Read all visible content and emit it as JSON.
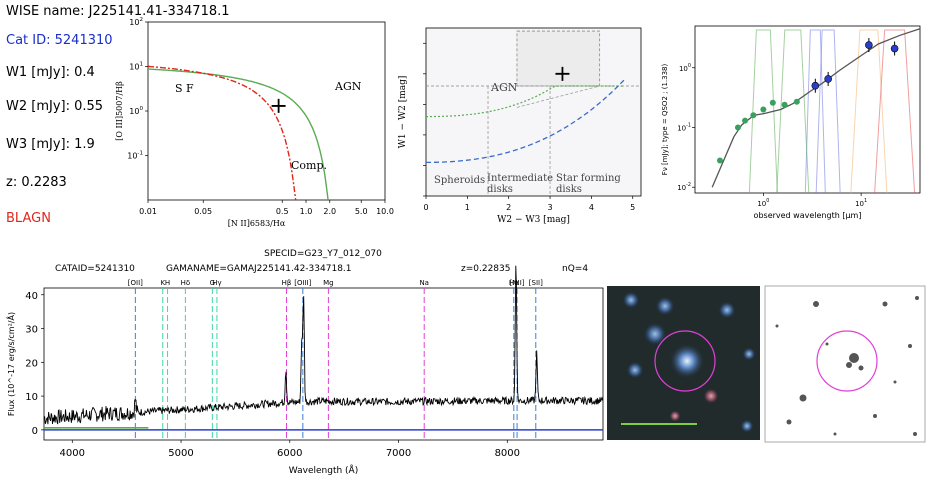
{
  "info": {
    "wise_name": "WISE name: J225141.41-334718.1",
    "cat_id": "Cat ID: 5241310",
    "w1": "W1 [mJy]:  0.4",
    "w2": "W2 [mJy]:  0.55",
    "w3": "W3 [mJy]:  1.9",
    "z": "z:   0.2283",
    "class": "BLAGN"
  },
  "colors": {
    "blue": "#1a2ecc",
    "red": "#e0261b",
    "green": "#5aac52",
    "magenta": "#e040d8"
  },
  "chart_data": [
    {
      "type": "scatter",
      "name": "BPT diagram",
      "xlabel": "[N II]6583/Hα",
      "ylabel": "[O III]5007/Hβ",
      "xscale": "log",
      "yscale": "log",
      "xlim": [
        0.01,
        10.0
      ],
      "ylim": [
        0.01,
        100
      ],
      "xticks": [
        "0.01",
        "0.05",
        "0.5",
        "1.0",
        "2.0",
        "5.0",
        "10.0"
      ],
      "xtick_values": [
        0.01,
        0.05,
        0.5,
        1.0,
        2.0,
        5.0,
        10.0
      ],
      "yticks": [
        "10^-1",
        "10^0",
        "10^1",
        "10^2"
      ],
      "ytick_values": [
        0.1,
        1,
        10,
        100
      ],
      "region_labels": [
        "S F",
        "AGN",
        "Comp."
      ],
      "point": {
        "x": 0.45,
        "y": 1.3
      }
    },
    {
      "type": "scatter",
      "name": "WISE colour-colour",
      "xlabel": "W2 − W3 [mag]",
      "ylabel": "W1 − W2 [mag]",
      "xlim": [
        0,
        5.2
      ],
      "ylim": [
        -1.0,
        1.75
      ],
      "xticks": [
        "0",
        "1",
        "2",
        "3",
        "4",
        "5"
      ],
      "yticks": [
        "−1.0",
        "−0.5",
        "0.0",
        "0.5",
        "1.0",
        "1.5"
      ],
      "region_labels": [
        "AGN",
        "Spheroids",
        "Intermediate",
        "disks",
        "Star forming",
        "disks"
      ],
      "point": {
        "x": 3.3,
        "y": 1.0
      }
    },
    {
      "type": "scatter",
      "name": "SED",
      "xlabel": "observed wavelength [μm]",
      "ylabel": "Fν [mJy]; type = QSO2 ; (1.338)",
      "xscale": "log",
      "yscale": "log",
      "xlim": [
        0.2,
        40
      ],
      "ylim": [
        0.008,
        5
      ],
      "xticks": [
        "10^0",
        "10^1"
      ],
      "yticks": [
        "10^-2",
        "10^-1",
        "10^0"
      ],
      "green_points": [
        [
          0.36,
          0.028
        ],
        [
          0.55,
          0.1
        ],
        [
          0.65,
          0.13
        ],
        [
          0.79,
          0.16
        ],
        [
          1.0,
          0.2
        ],
        [
          1.25,
          0.26
        ],
        [
          1.65,
          0.24
        ],
        [
          2.2,
          0.27
        ]
      ],
      "blue_points": [
        [
          3.4,
          0.5
        ],
        [
          4.6,
          0.65
        ],
        [
          12,
          2.4
        ],
        [
          22,
          2.1
        ]
      ],
      "model": [
        [
          0.3,
          0.01
        ],
        [
          0.4,
          0.03
        ],
        [
          0.5,
          0.07
        ],
        [
          0.6,
          0.11
        ],
        [
          0.8,
          0.16
        ],
        [
          1.0,
          0.17
        ],
        [
          1.5,
          0.2
        ],
        [
          2.0,
          0.25
        ],
        [
          3.0,
          0.4
        ],
        [
          4.0,
          0.55
        ],
        [
          6.0,
          0.9
        ],
        [
          10,
          1.6
        ],
        [
          15,
          2.5
        ],
        [
          25,
          3.5
        ],
        [
          40,
          4.5
        ]
      ]
    },
    {
      "type": "line",
      "name": "Spectrum",
      "header": {
        "specid": "SPECID=G23_Y7_012_070",
        "cataid": "CATAID=5241310",
        "gamaname": "GAMANAME=GAMAJ225141.42-334718.1",
        "z": "z=0.22835",
        "nq": "nQ=4"
      },
      "xlabel": "Wavelength (Å)",
      "ylabel": "Flux (10^-17 erg/s/cm²/Å)",
      "xlim": [
        3740,
        8880
      ],
      "ylim": [
        -3,
        42
      ],
      "xticks": [
        "4000",
        "5000",
        "6000",
        "7000",
        "8000"
      ],
      "xtick_values": [
        4000,
        5000,
        6000,
        7000,
        8000
      ],
      "yticks": [
        "0",
        "10",
        "20",
        "30",
        "40"
      ],
      "ytick_values": [
        0,
        10,
        20,
        30,
        40
      ],
      "line_labels": [
        {
          "label": "[OII]",
          "x": 4580
        },
        {
          "label": "K",
          "x": 4832
        },
        {
          "label": "H",
          "x": 4876
        },
        {
          "label": "Hδ",
          "x": 5040
        },
        {
          "label": "G",
          "x": 5288
        },
        {
          "label": "Hγ",
          "x": 5330
        },
        {
          "label": "Hβ",
          "x": 5970
        },
        {
          "label": "[OIII]",
          "x": 6120
        },
        {
          "label": "Mg",
          "x": 6355
        },
        {
          "label": "Na",
          "x": 7236
        },
        {
          "label": "Hα",
          "x": 8060
        },
        {
          "label": "[NII]",
          "x": 8090
        },
        {
          "label": "[SII]",
          "x": 8262
        }
      ],
      "continuum": [
        [
          3740,
          3.5
        ],
        [
          4000,
          4
        ],
        [
          4300,
          4.8
        ],
        [
          4600,
          5.2
        ],
        [
          5000,
          6
        ],
        [
          5500,
          7
        ],
        [
          5900,
          8
        ],
        [
          6300,
          8.5
        ],
        [
          6800,
          8.3
        ],
        [
          7300,
          8.5
        ],
        [
          7800,
          8.6
        ],
        [
          8300,
          8.7
        ],
        [
          8880,
          8.6
        ]
      ],
      "emission": [
        {
          "x": 4580,
          "h": 4
        },
        {
          "x": 5964,
          "h": 10
        },
        {
          "x": 6110,
          "h": 18
        },
        {
          "x": 6127,
          "h": 32
        },
        {
          "x": 8080,
          "h": 42
        },
        {
          "x": 8270,
          "h": 14
        }
      ]
    }
  ],
  "images": {
    "color_image": "color cutout image",
    "gray_image": "grayscale cutout image"
  }
}
